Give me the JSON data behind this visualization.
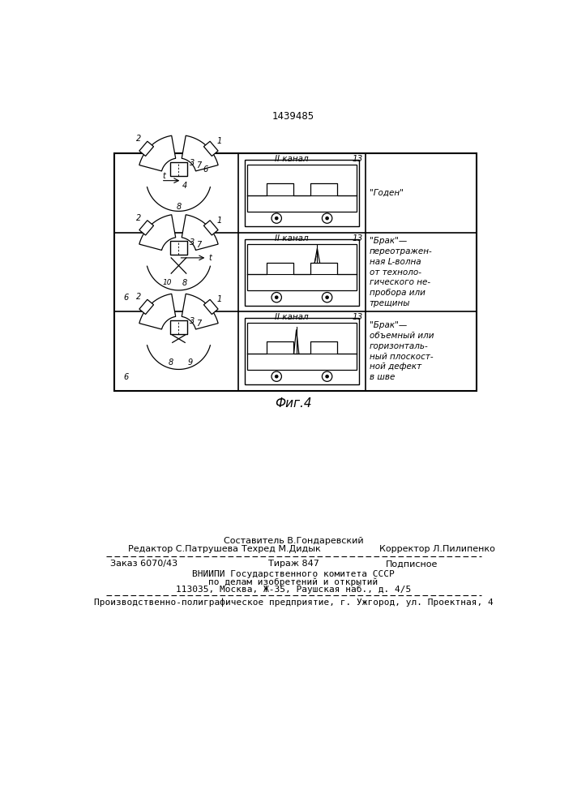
{
  "patent_number": "1439485",
  "fig_caption": "Фиг.4",
  "row1_label": "\"Годен\"",
  "row2_label": "\"Брак\"—\nпереотражен-\nная L-волна\nот техноло-\nгического не-\nпробора или\nтрещины",
  "row3_label": "\"Брак\"—\nобъемный или\nгоризонталь-\nный плоскост-\nной дефект\nв шве",
  "channel_label": "II канал",
  "channel_num": "13",
  "footer_line1_center": "Составитель В.Гондаревский",
  "footer_line1_left": "Редактор С.Патрушева",
  "footer_line1_center2": "Техред М.Дидык",
  "footer_line1_right": "Корректор Л.Пилипенко",
  "footer_line2_left": "Заказ 6070/43",
  "footer_line2_center": "Тираж 847",
  "footer_line2_right": "Подписное",
  "footer_line3": "ВНИИПИ Государственного комитета СССР",
  "footer_line4": "по делам изобретений и открытий",
  "footer_line5": "113035, Москва, Ж-35, Раушская наб., д. 4/5",
  "footer_line6": "Производственно-полиграфическое предприятие, г. Ужгород, ул. Проектная, 4"
}
